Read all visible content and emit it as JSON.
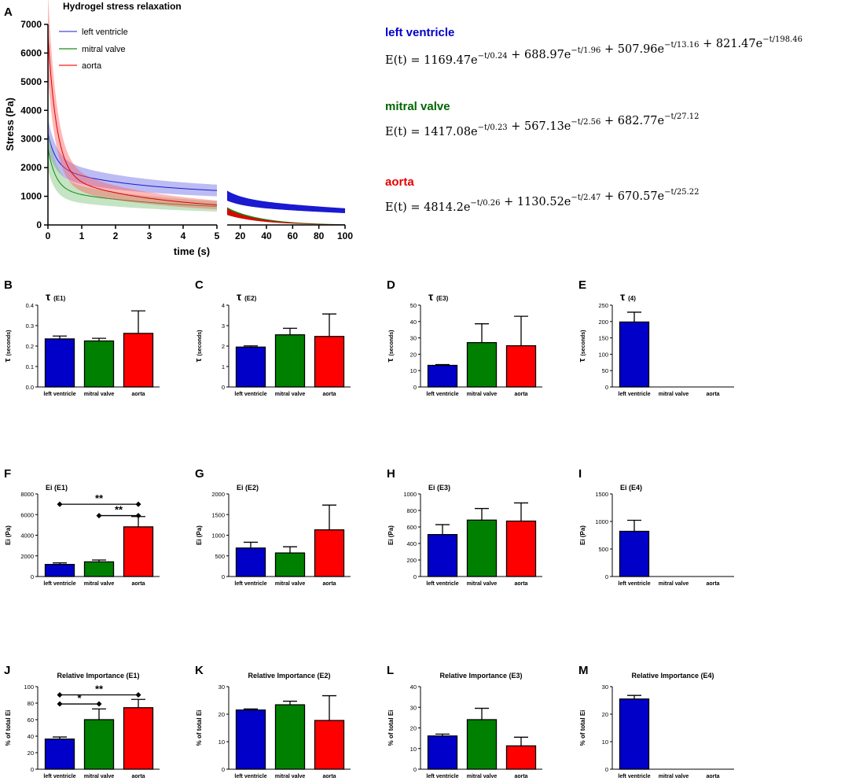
{
  "colors": {
    "left_ventricle": "#0000c8",
    "mitral_valve": "#008000",
    "aorta": "#ff0000",
    "lv_eq_title": "#0000cc",
    "mv_eq_title": "#006600",
    "ao_eq_title": "#e60000"
  },
  "group_labels": [
    "left ventricle",
    "mitral valve",
    "aorta"
  ],
  "panel_a": {
    "letter": "A",
    "title": "Hydrogel stress relaxation",
    "xlabel": "time (s)",
    "ylabel": "Stress (Pa)",
    "legend": [
      "left ventricle",
      "mitral valve",
      "aorta"
    ],
    "equations": [
      {
        "name": "left ventricle",
        "formula": "E(t) = 1169.47e^{−t/0.24} + 688.97e^{−t/1.96} + 507.96e^{−t/13.16} + 821.47e^{−t/198.46}"
      },
      {
        "name": "mitral valve",
        "formula": "E(t) = 1417.08e^{−t/0.23} + 567.13e^{−t/2.56} + 682.77e^{−t/27.12}"
      },
      {
        "name": "aorta",
        "formula": "E(t) = 4814.2e^{−t/0.26} + 1130.52e^{−t/2.47} + 670.57e^{−t/25.22}"
      }
    ],
    "formula_parts": {
      "lv": [
        [
          "E(t) = 1169.47e",
          "−t/0.24"
        ],
        [
          " + 688.97e",
          "−t/1.96"
        ],
        [
          " + 507.96e",
          "−t/13.16"
        ],
        [
          " + 821.47e",
          "−t/198.46"
        ]
      ],
      "mv": [
        [
          "E(t) = 1417.08e",
          "−t/0.23"
        ],
        [
          " + 567.13e",
          "−t/2.56"
        ],
        [
          " + 682.77e",
          "−t/27.12"
        ]
      ],
      "ao": [
        [
          "E(t) = 4814.2e",
          "−t/0.26"
        ],
        [
          " + 1130.52e",
          "−t/2.47"
        ],
        [
          " + 670.57e",
          "−t/25.22"
        ]
      ]
    }
  },
  "chart_data": [
    {
      "type": "line",
      "panel": "A",
      "title": "Hydrogel stress relaxation",
      "xlabel": "time (s)",
      "ylabel": "Stress (Pa)",
      "ylim": [
        0,
        7000
      ],
      "yticks": [
        0,
        1000,
        2000,
        3000,
        4000,
        5000,
        6000,
        7000
      ],
      "x_segments": [
        {
          "range": [
            0,
            5
          ],
          "ticks": [
            0,
            1,
            2,
            3,
            4,
            5
          ]
        },
        {
          "range": [
            10,
            100
          ],
          "ticks": [
            20,
            40,
            60,
            80,
            100
          ]
        }
      ],
      "series": [
        {
          "name": "left ventricle",
          "model": {
            "amps": [
              1169.47,
              688.97,
              507.96,
              821.47
            ],
            "taus": [
              0.24,
              1.96,
              13.16,
              198.46
            ]
          },
          "band": 0.17
        },
        {
          "name": "mitral valve",
          "model": {
            "amps": [
              1417.08,
              567.13,
              682.77
            ],
            "taus": [
              0.23,
              2.56,
              27.12
            ]
          },
          "band": 0.28
        },
        {
          "name": "aorta",
          "model": {
            "amps": [
              4814.2,
              1130.52,
              670.57
            ],
            "taus": [
              0.26,
              2.47,
              25.22
            ]
          },
          "band": 0.22
        }
      ]
    },
    {
      "type": "bar",
      "panel": "B",
      "title": "τ (E1)",
      "ylabel": "τ (seconds)",
      "categories": [
        "left ventricle",
        "mitral valve",
        "aorta"
      ],
      "values": [
        0.235,
        0.225,
        0.262
      ],
      "errors": [
        0.014,
        0.013,
        0.11
      ],
      "ylim": [
        0,
        0.4
      ],
      "yticks": [
        0.0,
        0.1,
        0.2,
        0.3,
        0.4
      ],
      "significance": []
    },
    {
      "type": "bar",
      "panel": "C",
      "title": "τ (E2)",
      "ylabel": "τ (seconds)",
      "categories": [
        "left ventricle",
        "mitral valve",
        "aorta"
      ],
      "values": [
        1.95,
        2.55,
        2.47
      ],
      "errors": [
        0.06,
        0.32,
        1.1
      ],
      "ylim": [
        0,
        4
      ],
      "yticks": [
        0,
        1,
        2,
        3,
        4
      ],
      "significance": []
    },
    {
      "type": "bar",
      "panel": "D",
      "title": "τ (E3)",
      "ylabel": "τ (seconds)",
      "categories": [
        "left ventricle",
        "mitral valve",
        "aorta"
      ],
      "values": [
        13.2,
        27.1,
        25.2
      ],
      "errors": [
        0.5,
        11.5,
        18
      ],
      "ylim": [
        0,
        50
      ],
      "yticks": [
        0,
        10,
        20,
        30,
        40,
        50
      ],
      "significance": []
    },
    {
      "type": "bar",
      "panel": "E",
      "title": "τ (4)",
      "ylabel": "τ (seconds)",
      "categories": [
        "left ventricle",
        "mitral valve",
        "aorta"
      ],
      "values": [
        198.5,
        0,
        0
      ],
      "errors": [
        30,
        0,
        0
      ],
      "ylim": [
        0,
        250
      ],
      "yticks": [
        0,
        50,
        100,
        150,
        200,
        250
      ],
      "significance": []
    },
    {
      "type": "bar",
      "panel": "F",
      "title": "Ei (E1)",
      "ylabel": "Ei (Pa)",
      "categories": [
        "left ventricle",
        "mitral valve",
        "aorta"
      ],
      "values": [
        1170,
        1420,
        4810
      ],
      "errors": [
        150,
        180,
        1000
      ],
      "ylim": [
        0,
        8000
      ],
      "yticks": [
        0,
        2000,
        4000,
        6000,
        8000
      ],
      "significance": [
        {
          "from": 0,
          "to": 2,
          "y": 7000,
          "label": "**"
        },
        {
          "from": 1,
          "to": 2,
          "y": 5900,
          "label": "**"
        }
      ]
    },
    {
      "type": "bar",
      "panel": "G",
      "title": "Ei (E2)",
      "ylabel": "Ei (Pa)",
      "categories": [
        "left ventricle",
        "mitral valve",
        "aorta"
      ],
      "values": [
        690,
        570,
        1130
      ],
      "errors": [
        140,
        150,
        600
      ],
      "ylim": [
        0,
        2000
      ],
      "yticks": [
        0,
        500,
        1000,
        1500,
        2000
      ],
      "significance": []
    },
    {
      "type": "bar",
      "panel": "H",
      "title": "Ei (E3)",
      "ylabel": "Ei (Pa)",
      "categories": [
        "left ventricle",
        "mitral valve",
        "aorta"
      ],
      "values": [
        508,
        683,
        671
      ],
      "errors": [
        120,
        140,
        220
      ],
      "ylim": [
        0,
        1000
      ],
      "yticks": [
        0,
        200,
        400,
        600,
        800,
        1000
      ],
      "significance": []
    },
    {
      "type": "bar",
      "panel": "I",
      "title": "Ei (E4)",
      "ylabel": "Ei (Pa)",
      "categories": [
        "left ventricle",
        "mitral valve",
        "aorta"
      ],
      "values": [
        821,
        0,
        0
      ],
      "errors": [
        200,
        0,
        0
      ],
      "ylim": [
        0,
        1500
      ],
      "yticks": [
        0,
        500,
        1000,
        1500
      ],
      "significance": []
    },
    {
      "type": "bar",
      "panel": "J",
      "title": "Relative Importance (E1)",
      "ylabel": "% of total Ei",
      "categories": [
        "left ventricle",
        "mitral valve",
        "aorta"
      ],
      "values": [
        36.5,
        60,
        74.5
      ],
      "errors": [
        2.5,
        13,
        10
      ],
      "ylim": [
        0,
        100
      ],
      "yticks": [
        0,
        20,
        40,
        60,
        80,
        100
      ],
      "significance": [
        {
          "from": 0,
          "to": 2,
          "y": 90,
          "label": "**"
        },
        {
          "from": 0,
          "to": 1,
          "y": 79,
          "label": "*"
        }
      ]
    },
    {
      "type": "bar",
      "panel": "K",
      "title": "Relative Importance (E2)",
      "ylabel": "% of total Ei",
      "categories": [
        "left ventricle",
        "mitral valve",
        "aorta"
      ],
      "values": [
        21.5,
        23.4,
        17.7
      ],
      "errors": [
        0.4,
        1.3,
        9
      ],
      "ylim": [
        0,
        30
      ],
      "yticks": [
        0,
        10,
        20,
        30
      ],
      "significance": []
    },
    {
      "type": "bar",
      "panel": "L",
      "title": "Relative Importance (E3)",
      "ylabel": "% of total Ei",
      "categories": [
        "left ventricle",
        "mitral valve",
        "aorta"
      ],
      "values": [
        16.1,
        24,
        11.3
      ],
      "errors": [
        0.9,
        5.5,
        4.2
      ],
      "ylim": [
        0,
        40
      ],
      "yticks": [
        0,
        10,
        20,
        30,
        40
      ],
      "significance": []
    },
    {
      "type": "bar",
      "panel": "M",
      "title": "Relative Importance (E4)",
      "ylabel": "% of total Ei",
      "categories": [
        "left ventricle",
        "mitral valve",
        "aorta"
      ],
      "values": [
        25.5,
        0,
        0
      ],
      "errors": [
        1.3,
        0,
        0
      ],
      "ylim": [
        0,
        30
      ],
      "yticks": [
        0,
        10,
        20,
        30
      ],
      "significance": []
    }
  ]
}
